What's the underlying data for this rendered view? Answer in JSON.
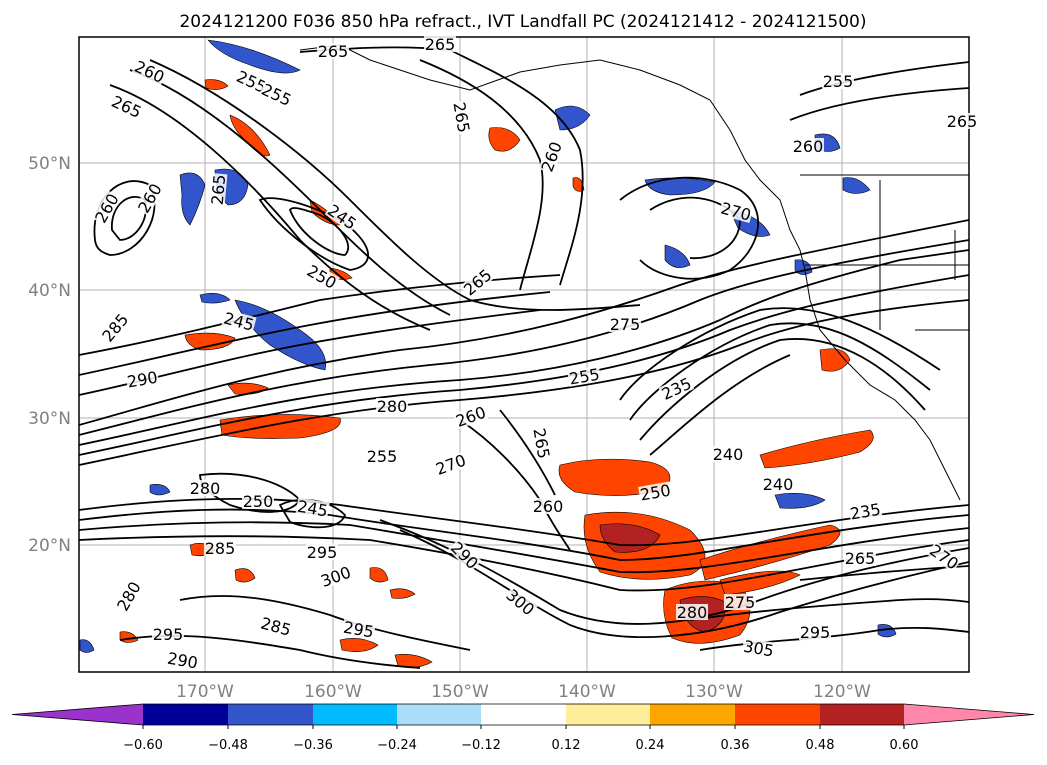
{
  "figure": {
    "title": "2024121200 F036 850 hPa refract., IVT Landfall PC (2024121412 - 2024121500)"
  },
  "map": {
    "lat_labels": [
      "50°N",
      "40°N",
      "30°N",
      "20°N"
    ],
    "lon_labels": [
      "170°W",
      "160°W",
      "150°W",
      "140°W",
      "130°W",
      "120°W"
    ],
    "grid": true,
    "contour_labels": [
      "265",
      "265",
      "260",
      "265",
      "255",
      "255",
      "260",
      "265",
      "260",
      "260",
      "245",
      "265",
      "250",
      "255",
      "260",
      "265",
      "270",
      "265",
      "285",
      "290",
      "275",
      "245",
      "280",
      "255",
      "260",
      "235",
      "265",
      "255",
      "270",
      "240",
      "240",
      "250",
      "260",
      "250",
      "245",
      "235",
      "280",
      "285",
      "295",
      "290",
      "300",
      "280",
      "300",
      "295",
      "285",
      "295",
      "290",
      "280",
      "275",
      "270",
      "265",
      "295",
      "305"
    ]
  },
  "colorbar": {
    "ticks": [
      "−0.60",
      "−0.48",
      "−0.36",
      "−0.24",
      "−0.12",
      "0.12",
      "0.24",
      "0.36",
      "0.48",
      "0.60"
    ],
    "colors": [
      "#9933cc",
      "#000099",
      "#3355cc",
      "#00bbff",
      "#aaddf8",
      "#ffffff",
      "#ffee99",
      "#ffa500",
      "#ff4400",
      "#b22222",
      "#ff88aa"
    ]
  }
}
